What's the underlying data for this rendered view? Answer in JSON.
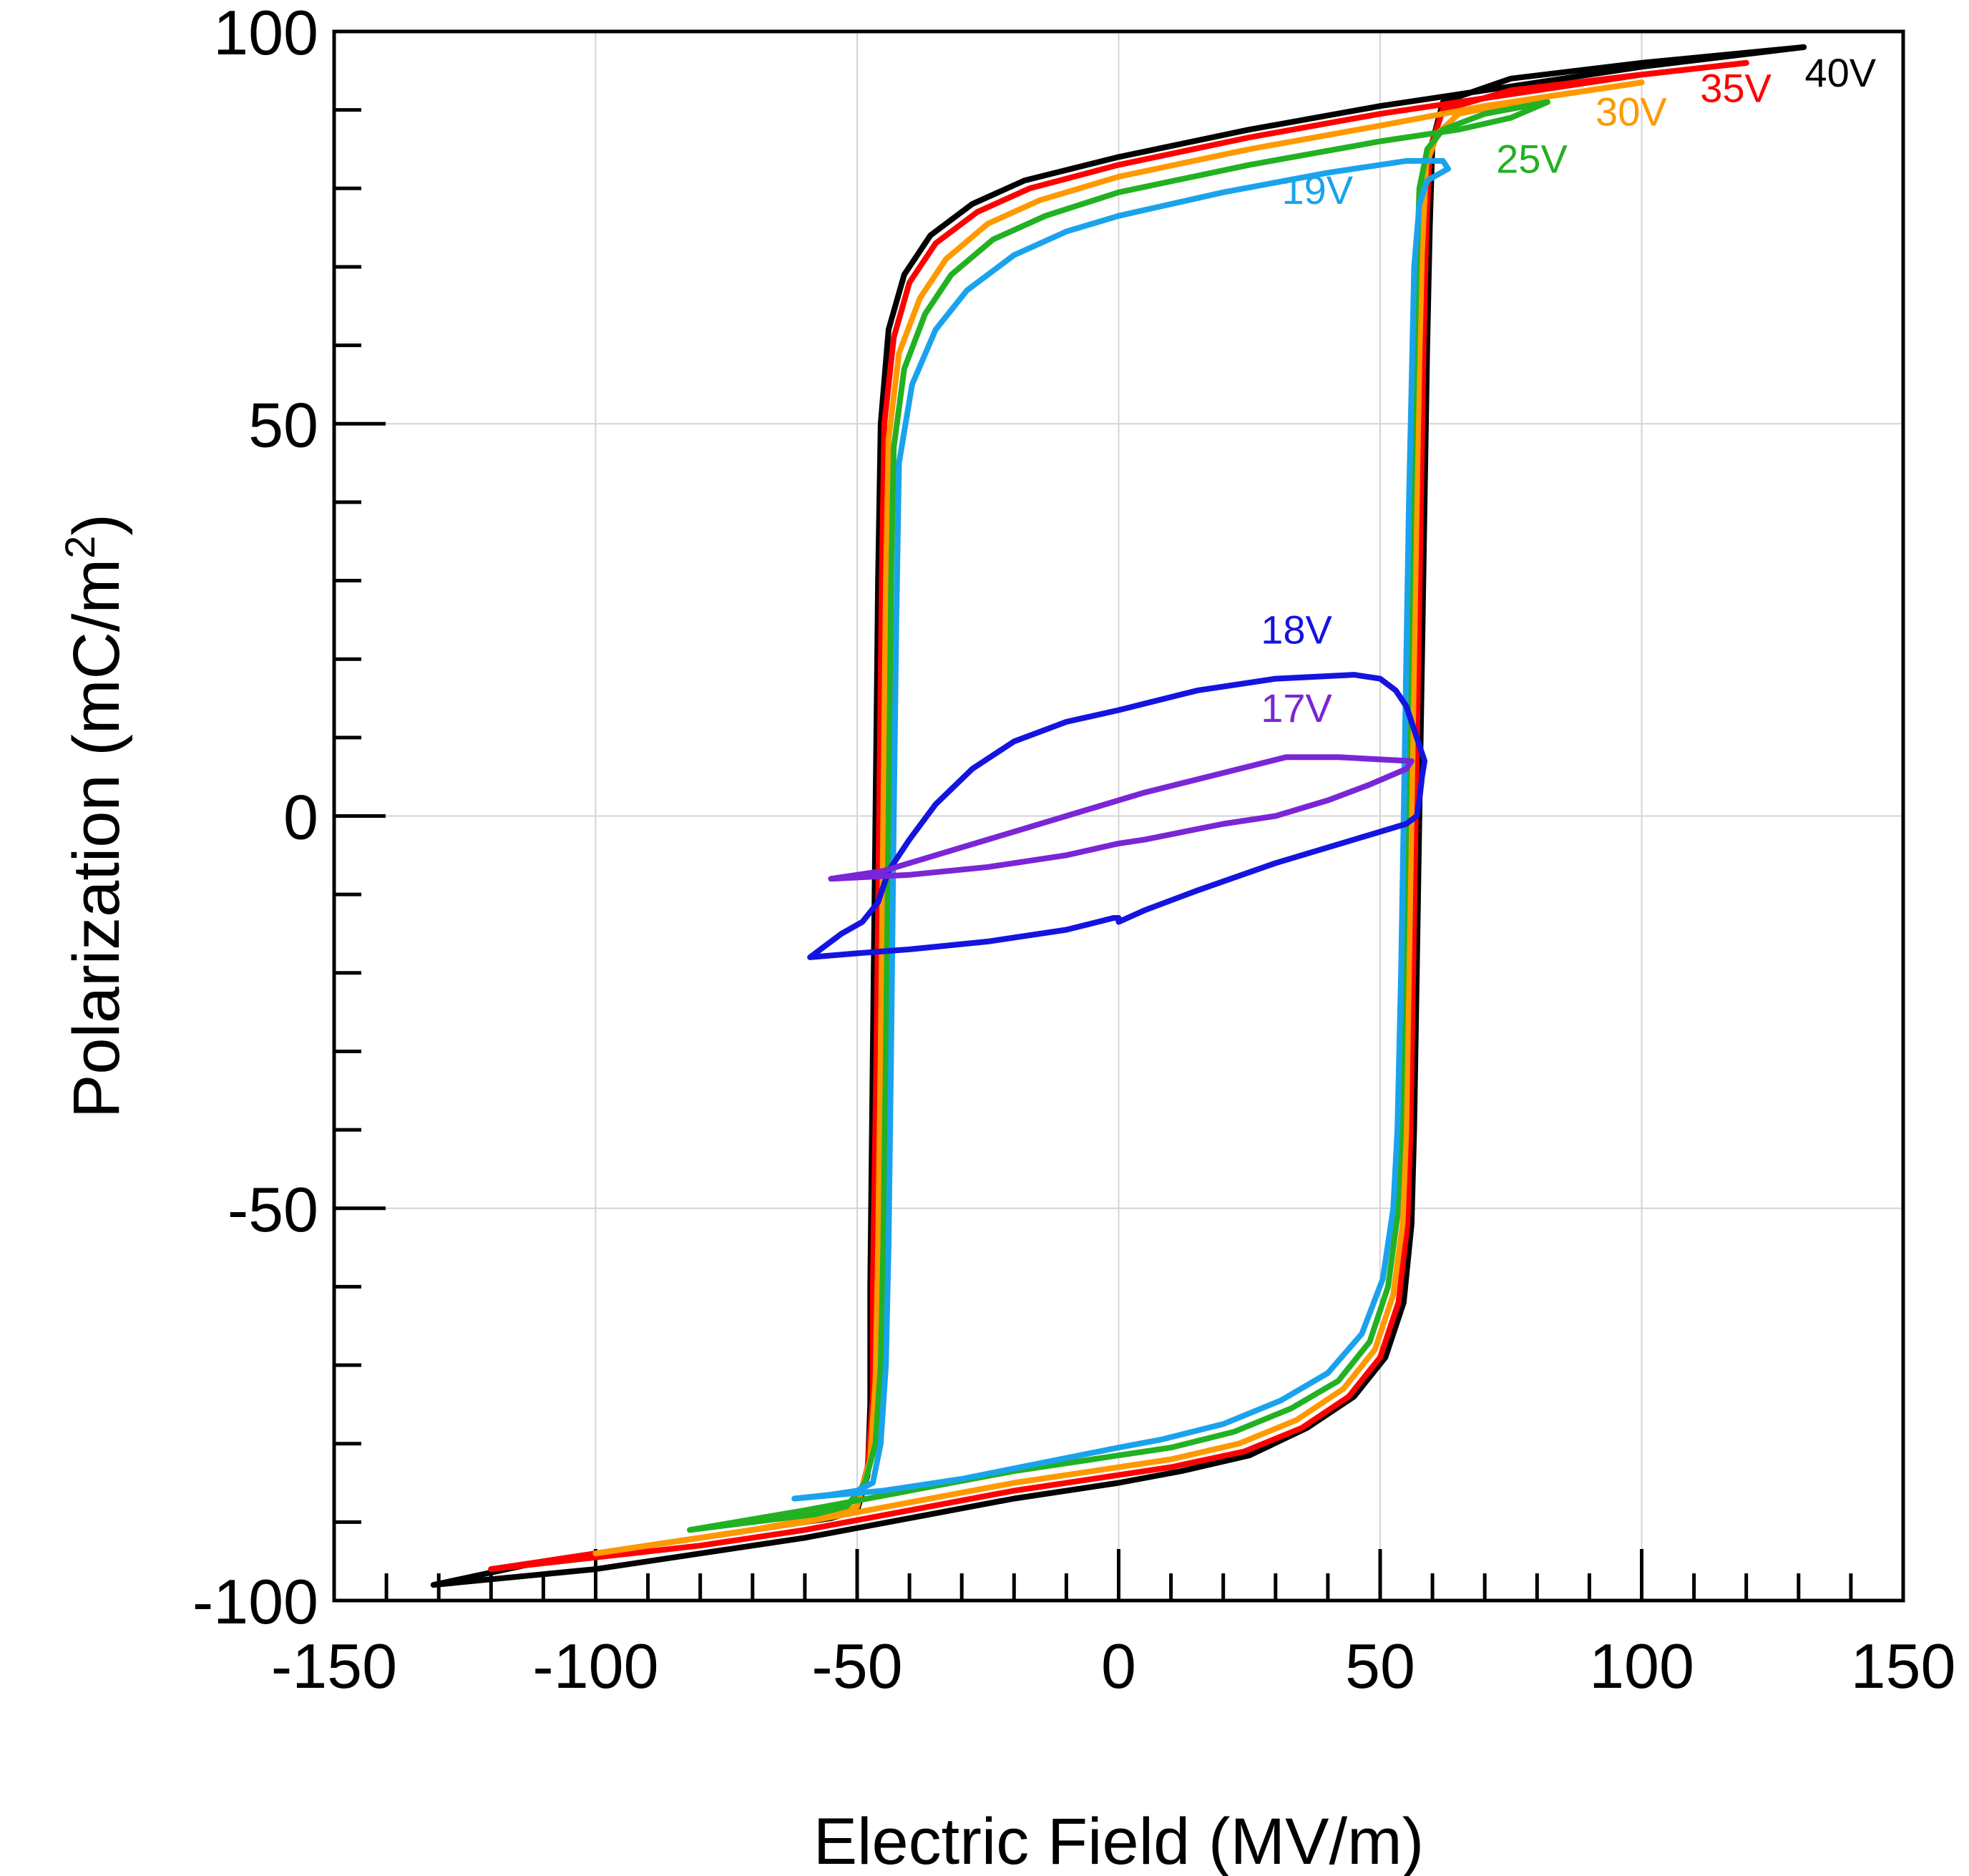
{
  "chart_data": {
    "type": "line",
    "xlabel": "Electric Field (MV/m)",
    "ylabel_main": "Polarization (mC/m",
    "ylabel_sup": "2",
    "ylabel_close": ")",
    "xlim": [
      -150,
      150
    ],
    "ylim": [
      -100,
      100
    ],
    "xticks": [
      "-150",
      "-100",
      "-50",
      "0",
      "50",
      "100",
      "150"
    ],
    "yticks": [
      "-100",
      "-50",
      "0",
      "50",
      "100"
    ],
    "x_minor_step": 10,
    "y_minor_step": 10,
    "grid": true,
    "series": [
      {
        "name": "40V",
        "color": "#000000",
        "upper": [
          [
            -131,
            -98
          ],
          [
            -110,
            -95
          ],
          [
            -95,
            -93.5
          ],
          [
            -80,
            -92
          ],
          [
            -65,
            -90.5
          ],
          [
            -55,
            -89.5
          ],
          [
            -50,
            -88.5
          ],
          [
            -48,
            -84
          ],
          [
            -47.5,
            -75
          ],
          [
            -47.5,
            -60
          ],
          [
            -47,
            -30
          ],
          [
            -46.5,
            0
          ],
          [
            -46,
            30
          ],
          [
            -45.5,
            50
          ],
          [
            -44,
            62
          ],
          [
            -41,
            69
          ],
          [
            -36,
            74
          ],
          [
            -28,
            78
          ],
          [
            -18,
            81
          ],
          [
            0,
            84
          ],
          [
            25,
            87.5
          ],
          [
            50,
            90.5
          ],
          [
            75,
            93
          ],
          [
            100,
            95.5
          ],
          [
            131,
            98
          ]
        ],
        "lower": [
          [
            131,
            98
          ],
          [
            100,
            96
          ],
          [
            75,
            94
          ],
          [
            62,
            91
          ],
          [
            60,
            86
          ],
          [
            59.5,
            75
          ],
          [
            59,
            60
          ],
          [
            58.5,
            40
          ],
          [
            58,
            20
          ],
          [
            57.5,
            0
          ],
          [
            57,
            -20
          ],
          [
            56.5,
            -40
          ],
          [
            56,
            -52
          ],
          [
            54.5,
            -62
          ],
          [
            51,
            -69
          ],
          [
            45,
            -74
          ],
          [
            36,
            -78
          ],
          [
            25,
            -81.5
          ],
          [
            12,
            -83.5
          ],
          [
            0,
            -85
          ],
          [
            -20,
            -87
          ],
          [
            -40,
            -89.5
          ],
          [
            -60,
            -92
          ],
          [
            -80,
            -94
          ],
          [
            -100,
            -96
          ],
          [
            -131,
            -98
          ]
        ]
      },
      {
        "name": "35V",
        "color": "#ff0000",
        "upper": [
          [
            -120,
            -96
          ],
          [
            -100,
            -94
          ],
          [
            -80,
            -92
          ],
          [
            -65,
            -90.5
          ],
          [
            -55,
            -89
          ],
          [
            -50,
            -88
          ],
          [
            -48,
            -83
          ],
          [
            -47,
            -74
          ],
          [
            -47,
            -60
          ],
          [
            -46.3,
            -30
          ],
          [
            -45.8,
            0
          ],
          [
            -45.3,
            30
          ],
          [
            -44.8,
            50
          ],
          [
            -43,
            61
          ],
          [
            -40,
            68
          ],
          [
            -35,
            73
          ],
          [
            -27,
            77
          ],
          [
            -17,
            80
          ],
          [
            0,
            83
          ],
          [
            25,
            86.5
          ],
          [
            50,
            89.5
          ],
          [
            75,
            92
          ],
          [
            100,
            94.5
          ],
          [
            120,
            96
          ]
        ],
        "lower": [
          [
            120,
            96
          ],
          [
            100,
            94.5
          ],
          [
            75,
            92.5
          ],
          [
            62,
            90
          ],
          [
            59.5,
            85
          ],
          [
            58.8,
            74
          ],
          [
            58.3,
            60
          ],
          [
            57.8,
            40
          ],
          [
            57.3,
            20
          ],
          [
            56.8,
            0
          ],
          [
            56.3,
            -20
          ],
          [
            55.8,
            -40
          ],
          [
            55.2,
            -52
          ],
          [
            53.5,
            -62
          ],
          [
            50,
            -69
          ],
          [
            44,
            -74
          ],
          [
            35,
            -78
          ],
          [
            24,
            -81
          ],
          [
            10,
            -83
          ],
          [
            0,
            -84
          ],
          [
            -20,
            -86
          ],
          [
            -40,
            -88.5
          ],
          [
            -60,
            -91
          ],
          [
            -80,
            -93
          ],
          [
            -100,
            -94.5
          ],
          [
            -120,
            -96
          ]
        ]
      },
      {
        "name": "30V",
        "color": "#ff9900",
        "upper": [
          [
            -100,
            -94
          ],
          [
            -85,
            -92.5
          ],
          [
            -70,
            -91
          ],
          [
            -58,
            -89.5
          ],
          [
            -50,
            -88
          ],
          [
            -47.5,
            -82
          ],
          [
            -46.5,
            -72
          ],
          [
            -46,
            -55
          ],
          [
            -45.5,
            -30
          ],
          [
            -45,
            0
          ],
          [
            -44.5,
            30
          ],
          [
            -44,
            48
          ],
          [
            -42,
            59
          ],
          [
            -38,
            66
          ],
          [
            -33,
            71
          ],
          [
            -25,
            75.5
          ],
          [
            -15,
            78.5
          ],
          [
            0,
            81.5
          ],
          [
            25,
            85
          ],
          [
            50,
            88
          ],
          [
            70,
            90.5
          ],
          [
            100,
            93.5
          ]
        ],
        "lower": [
          [
            100,
            93.5
          ],
          [
            80,
            91.5
          ],
          [
            65,
            89.5
          ],
          [
            61,
            87
          ],
          [
            58.8,
            83
          ],
          [
            58,
            72
          ],
          [
            57.5,
            58
          ],
          [
            57,
            40
          ],
          [
            56.5,
            20
          ],
          [
            56,
            0
          ],
          [
            55.5,
            -20
          ],
          [
            55,
            -40
          ],
          [
            54.3,
            -52
          ],
          [
            52.5,
            -61
          ],
          [
            49,
            -68
          ],
          [
            43,
            -73
          ],
          [
            34,
            -77
          ],
          [
            23,
            -80
          ],
          [
            10,
            -82
          ],
          [
            0,
            -83
          ],
          [
            -20,
            -85
          ],
          [
            -40,
            -87.5
          ],
          [
            -60,
            -90
          ],
          [
            -80,
            -92
          ],
          [
            -100,
            -94
          ]
        ]
      },
      {
        "name": "25V",
        "color": "#22b122",
        "upper": [
          [
            -82,
            -91
          ],
          [
            -70,
            -90
          ],
          [
            -58,
            -89
          ],
          [
            -52,
            -88
          ],
          [
            -48.5,
            -85
          ],
          [
            -46.5,
            -80
          ],
          [
            -45.5,
            -70
          ],
          [
            -45,
            -55
          ],
          [
            -44.5,
            -30
          ],
          [
            -44,
            0
          ],
          [
            -43.5,
            30
          ],
          [
            -43,
            47
          ],
          [
            -41,
            57
          ],
          [
            -37,
            64
          ],
          [
            -32,
            69
          ],
          [
            -24,
            73.5
          ],
          [
            -14,
            76.5
          ],
          [
            0,
            79.5
          ],
          [
            25,
            83
          ],
          [
            50,
            86
          ],
          [
            65,
            87.5
          ],
          [
            75,
            89
          ],
          [
            82,
            91
          ]
        ],
        "lower": [
          [
            82,
            91
          ],
          [
            70,
            89.5
          ],
          [
            62,
            87.5
          ],
          [
            59,
            85
          ],
          [
            57.5,
            80
          ],
          [
            57,
            70
          ],
          [
            56.5,
            56
          ],
          [
            56,
            40
          ],
          [
            55.5,
            20
          ],
          [
            55,
            0
          ],
          [
            54.5,
            -20
          ],
          [
            54,
            -40
          ],
          [
            53.3,
            -51
          ],
          [
            51.5,
            -60
          ],
          [
            48,
            -67
          ],
          [
            42,
            -72
          ],
          [
            33,
            -75.5
          ],
          [
            22,
            -78.5
          ],
          [
            10,
            -80.5
          ],
          [
            0,
            -81.5
          ],
          [
            -20,
            -83.5
          ],
          [
            -40,
            -86
          ],
          [
            -60,
            -88.5
          ],
          [
            -82,
            -91
          ]
        ]
      },
      {
        "name": "19V",
        "color": "#1aa3ec",
        "upper": [
          [
            -62,
            -87
          ],
          [
            -55,
            -86.5
          ],
          [
            -50,
            -86
          ],
          [
            -47,
            -85
          ],
          [
            -45.5,
            -80
          ],
          [
            -44.5,
            -70
          ],
          [
            -44,
            -55
          ],
          [
            -43.5,
            -30
          ],
          [
            -43,
            0
          ],
          [
            -42.5,
            25
          ],
          [
            -42,
            45
          ],
          [
            -39.5,
            55
          ],
          [
            -35,
            62
          ],
          [
            -29,
            67
          ],
          [
            -20,
            71.5
          ],
          [
            -10,
            74.5
          ],
          [
            0,
            76.5
          ],
          [
            20,
            79.5
          ],
          [
            40,
            82
          ],
          [
            55,
            83.5
          ],
          [
            62,
            83.5
          ],
          [
            63,
            82.5
          ]
        ],
        "lower": [
          [
            63,
            82.5
          ],
          [
            59,
            81
          ],
          [
            57.5,
            78
          ],
          [
            56.5,
            70
          ],
          [
            56,
            55
          ],
          [
            55.5,
            40
          ],
          [
            55,
            20
          ],
          [
            54.5,
            0
          ],
          [
            54,
            -20
          ],
          [
            53.3,
            -40
          ],
          [
            52.5,
            -50
          ],
          [
            50.5,
            -59
          ],
          [
            46.5,
            -66
          ],
          [
            40,
            -71
          ],
          [
            31,
            -74.5
          ],
          [
            20,
            -77.5
          ],
          [
            8,
            -79.5
          ],
          [
            0,
            -80.5
          ],
          [
            -15,
            -82.5
          ],
          [
            -30,
            -84.5
          ],
          [
            -45,
            -86
          ],
          [
            -62,
            -87
          ]
        ]
      },
      {
        "name": "18V",
        "color": "#1414e0",
        "upper": [
          [
            -59,
            -18
          ],
          [
            -56,
            -16.5
          ],
          [
            -53,
            -15
          ],
          [
            -49,
            -13.5
          ],
          [
            -46,
            -11
          ],
          [
            -44,
            -7
          ],
          [
            -40,
            -3
          ],
          [
            -35,
            1.5
          ],
          [
            -28,
            6
          ],
          [
            -20,
            9.5
          ],
          [
            -10,
            12
          ],
          [
            0,
            13.5
          ],
          [
            15,
            16
          ],
          [
            30,
            17.5
          ],
          [
            45,
            18
          ],
          [
            50,
            17.5
          ],
          [
            53,
            16
          ],
          [
            55,
            14
          ],
          [
            57,
            10
          ],
          [
            58.5,
            7
          ],
          [
            58,
            5
          ],
          [
            57.5,
            2
          ],
          [
            57,
            0
          ],
          [
            55,
            -1
          ],
          [
            45,
            -3
          ],
          [
            30,
            -6
          ],
          [
            15,
            -9.5
          ],
          [
            5,
            -12
          ],
          [
            0,
            -13.5
          ],
          [
            0,
            -13
          ],
          [
            -1,
            -13
          ],
          [
            -10,
            -14.5
          ],
          [
            -25,
            -16
          ],
          [
            -40,
            -17
          ],
          [
            -50,
            -17.5
          ],
          [
            -59,
            -18
          ]
        ]
      },
      {
        "name": "17V",
        "color": "#7a26d6",
        "upper": [
          [
            -55,
            -8
          ],
          [
            -45,
            -7
          ],
          [
            -35,
            -5
          ],
          [
            -20,
            -2
          ],
          [
            -5,
            1
          ],
          [
            5,
            3
          ],
          [
            20,
            5.5
          ],
          [
            32,
            7.5
          ],
          [
            42,
            7.5
          ],
          [
            56,
            7
          ],
          [
            55,
            6
          ],
          [
            48,
            4
          ],
          [
            40,
            2
          ],
          [
            30,
            0
          ],
          [
            20,
            -1
          ],
          [
            5,
            -3
          ],
          [
            0,
            -3.5
          ],
          [
            -10,
            -5
          ],
          [
            -25,
            -6.5
          ],
          [
            -40,
            -7.5
          ],
          [
            -55,
            -8
          ]
        ]
      }
    ],
    "labels": [
      {
        "text": "40V",
        "color": "#000000",
        "x": 138,
        "y": 93
      },
      {
        "text": "35V",
        "color": "#ff0000",
        "x": 118,
        "y": 91
      },
      {
        "text": "30V",
        "color": "#ff9900",
        "x": 98,
        "y": 88
      },
      {
        "text": "25V",
        "color": "#22b122",
        "x": 79,
        "y": 82
      },
      {
        "text": "19V",
        "color": "#1aa3ec",
        "x": 38,
        "y": 78
      },
      {
        "text": "18V",
        "color": "#1414e0",
        "x": 34,
        "y": 22
      },
      {
        "text": "17V",
        "color": "#7a26d6",
        "x": 34,
        "y": 12
      }
    ]
  }
}
